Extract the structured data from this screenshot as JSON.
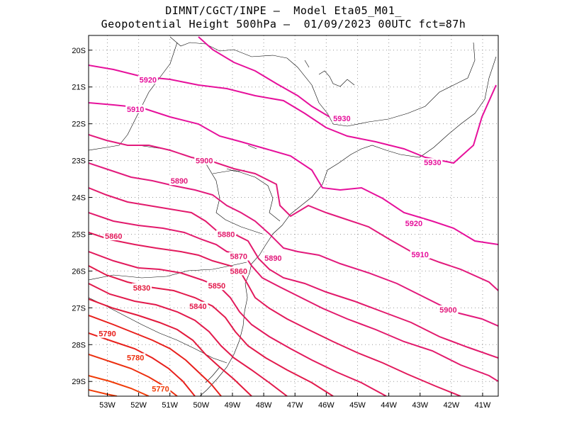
{
  "title": {
    "line1": "DIMNT/CGCT/INPE –  Model Eta05_M01_",
    "line2": "Geopotential Height 500hPa –  01/09/2023 00UTC fct=87h"
  },
  "map": {
    "lon_range": [
      -53.6,
      -40.5
    ],
    "lat_range": [
      -29.4,
      -19.6
    ],
    "lat_labels": [
      "20S",
      "21S",
      "22S",
      "23S",
      "24S",
      "25S",
      "26S",
      "27S",
      "28S",
      "29S"
    ],
    "lat_values": [
      -20,
      -21,
      -22,
      -23,
      -24,
      -25,
      -26,
      -27,
      -28,
      -29
    ],
    "lon_labels": [
      "53W",
      "52W",
      "51W",
      "50W",
      "49W",
      "48W",
      "47W",
      "46W",
      "45W",
      "44W",
      "43W",
      "42W",
      "41W"
    ],
    "lon_values": [
      -53,
      -52,
      -51,
      -50,
      -49,
      -48,
      -47,
      -46,
      -45,
      -44,
      -43,
      -42,
      -41
    ]
  },
  "contours": {
    "units": "gpm",
    "labels": [
      {
        "text": "5920",
        "value": 5920,
        "lon": -51.7,
        "lat": -20.8,
        "color": "#e6109b"
      },
      {
        "text": "5910",
        "value": 5910,
        "lon": -52.1,
        "lat": -21.6,
        "color": "#e6109b"
      },
      {
        "text": "5930",
        "value": 5930,
        "lon": -45.5,
        "lat": -21.85,
        "color": "#e6109b"
      },
      {
        "text": "5930",
        "value": 5930,
        "lon": -42.6,
        "lat": -23.05,
        "color": "#e6109b"
      },
      {
        "text": "5900",
        "value": 5900,
        "lon": -49.9,
        "lat": -23.0,
        "color": "#e21a7c"
      },
      {
        "text": "5890",
        "value": 5890,
        "lon": -50.7,
        "lat": -23.55,
        "color": "#e21a7c"
      },
      {
        "text": "5920",
        "value": 5920,
        "lon": -43.2,
        "lat": -24.7,
        "color": "#e6109b"
      },
      {
        "text": "5880",
        "value": 5880,
        "lon": -49.2,
        "lat": -25.0,
        "color": "#e21a6c"
      },
      {
        "text": "5860",
        "value": 5860,
        "lon": -52.8,
        "lat": -25.05,
        "color": "#e21a5c"
      },
      {
        "text": "5870",
        "value": 5870,
        "lon": -48.8,
        "lat": -25.6,
        "color": "#e21a6c"
      },
      {
        "text": "5890",
        "value": 5890,
        "lon": -47.7,
        "lat": -25.65,
        "color": "#e21a7c"
      },
      {
        "text": "5910",
        "value": 5910,
        "lon": -43.0,
        "lat": -25.55,
        "color": "#e6109b"
      },
      {
        "text": "5860",
        "value": 5860,
        "lon": -48.8,
        "lat": -26.0,
        "color": "#e21a5c"
      },
      {
        "text": "5850",
        "value": 5850,
        "lon": -49.5,
        "lat": -26.4,
        "color": "#e21a4c"
      },
      {
        "text": "5830",
        "value": 5830,
        "lon": -51.9,
        "lat": -26.45,
        "color": "#e21a3c"
      },
      {
        "text": "5840",
        "value": 5840,
        "lon": -50.1,
        "lat": -26.95,
        "color": "#e21a4c"
      },
      {
        "text": "5900",
        "value": 5900,
        "lon": -42.1,
        "lat": -27.05,
        "color": "#e21a7c"
      },
      {
        "text": "5790",
        "value": 5790,
        "lon": -53.0,
        "lat": -27.7,
        "color": "#e8201c"
      },
      {
        "text": "5780",
        "value": 5780,
        "lon": -52.1,
        "lat": -28.35,
        "color": "#ec3010"
      },
      {
        "text": "5770",
        "value": 5770,
        "lon": -51.3,
        "lat": -29.2,
        "color": "#f03c08"
      }
    ]
  }
}
